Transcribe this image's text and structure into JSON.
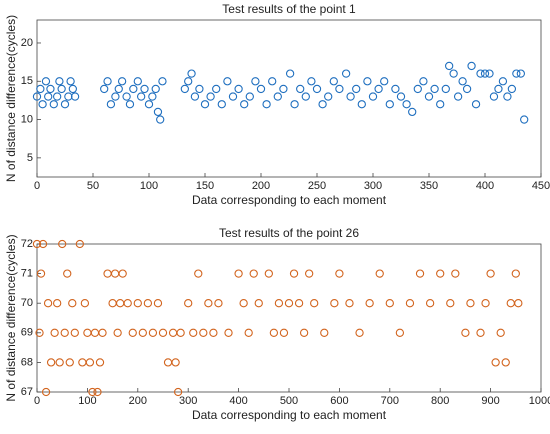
{
  "chart_data": [
    {
      "type": "scatter",
      "title": "Test results of the point 1",
      "xlabel": "Data corresponding to each moment",
      "ylabel": "N of distance difference(cycles)",
      "color": "#1f6fbf",
      "xlim": [
        0,
        450
      ],
      "ylim": [
        2.5,
        23
      ],
      "xticks": [
        0,
        50,
        100,
        150,
        200,
        250,
        300,
        350,
        400,
        450
      ],
      "yticks": [
        5,
        10,
        15,
        20
      ],
      "x": [
        0,
        3,
        5,
        8,
        10,
        12,
        15,
        18,
        20,
        22,
        25,
        28,
        30,
        32,
        34,
        60,
        63,
        66,
        70,
        73,
        76,
        80,
        83,
        86,
        90,
        93,
        96,
        100,
        103,
        106,
        108,
        110,
        112,
        132,
        135,
        138,
        141,
        145,
        150,
        155,
        160,
        165,
        170,
        175,
        180,
        185,
        190,
        195,
        200,
        205,
        210,
        215,
        220,
        226,
        230,
        235,
        240,
        245,
        250,
        255,
        260,
        265,
        270,
        276,
        280,
        285,
        290,
        295,
        300,
        305,
        310,
        315,
        320,
        325,
        330,
        335,
        340,
        345,
        350,
        355,
        360,
        365,
        368,
        372,
        376,
        380,
        384,
        388,
        392,
        396,
        400,
        404,
        408,
        412,
        416,
        420,
        424,
        428,
        432,
        435
      ],
      "values": [
        13,
        14,
        12,
        15,
        13,
        14,
        12,
        13,
        15,
        14,
        12,
        13,
        15,
        14,
        13,
        14,
        15,
        12,
        13,
        14,
        15,
        13,
        12,
        14,
        15,
        13,
        14,
        12,
        13,
        14,
        11,
        10,
        15,
        14,
        15,
        16,
        13,
        14,
        12,
        13,
        14,
        12,
        15,
        13,
        14,
        12,
        13,
        15,
        14,
        12,
        15,
        13,
        14,
        16,
        12,
        14,
        13,
        15,
        14,
        12,
        13,
        15,
        14,
        16,
        13,
        14,
        12,
        15,
        13,
        14,
        15,
        12,
        14,
        13,
        12,
        11,
        14,
        15,
        13,
        14,
        12,
        14,
        17,
        16,
        13,
        15,
        14,
        17,
        12,
        16,
        16,
        16,
        13,
        14,
        15,
        13,
        14,
        16,
        16,
        10
      ]
    },
    {
      "type": "scatter",
      "title": "Test results of the point 26",
      "xlabel": "Data corresponding to each moment",
      "ylabel": "N of distance difference(cycles)",
      "color": "#d2641e",
      "xlim": [
        0,
        1000
      ],
      "ylim": [
        67,
        72
      ],
      "xticks": [
        0,
        100,
        200,
        300,
        400,
        500,
        600,
        700,
        800,
        900,
        1000
      ],
      "yticks": [
        67,
        68,
        69,
        70,
        71,
        72
      ],
      "x": [
        0,
        5,
        8,
        12,
        18,
        22,
        28,
        35,
        40,
        45,
        50,
        55,
        60,
        65,
        70,
        75,
        85,
        90,
        95,
        100,
        105,
        110,
        115,
        120,
        125,
        130,
        140,
        150,
        155,
        160,
        165,
        170,
        180,
        190,
        200,
        210,
        220,
        230,
        240,
        250,
        260,
        270,
        275,
        280,
        285,
        300,
        310,
        320,
        330,
        340,
        350,
        360,
        380,
        400,
        410,
        420,
        430,
        440,
        460,
        470,
        480,
        490,
        500,
        510,
        520,
        530,
        540,
        550,
        570,
        590,
        600,
        620,
        640,
        660,
        680,
        700,
        720,
        740,
        760,
        780,
        800,
        820,
        830,
        850,
        860,
        880,
        890,
        900,
        910,
        920,
        930,
        940,
        950,
        955
      ],
      "values": [
        72,
        69,
        71,
        72,
        67,
        70,
        68,
        69,
        70,
        68,
        72,
        69,
        71,
        68,
        70,
        69,
        72,
        68,
        70,
        69,
        68,
        67,
        69,
        67,
        68,
        69,
        71,
        70,
        71,
        69,
        70,
        71,
        70,
        69,
        70,
        69,
        70,
        69,
        70,
        69,
        68,
        69,
        68,
        67,
        69,
        70,
        69,
        71,
        69,
        70,
        69,
        70,
        69,
        71,
        70,
        69,
        71,
        70,
        71,
        69,
        70,
        69,
        70,
        71,
        70,
        69,
        71,
        70,
        69,
        70,
        71,
        70,
        69,
        70,
        71,
        70,
        69,
        70,
        71,
        70,
        71,
        70,
        71,
        69,
        70,
        69,
        70,
        71,
        68,
        69,
        68,
        70,
        71,
        70
      ]
    }
  ]
}
